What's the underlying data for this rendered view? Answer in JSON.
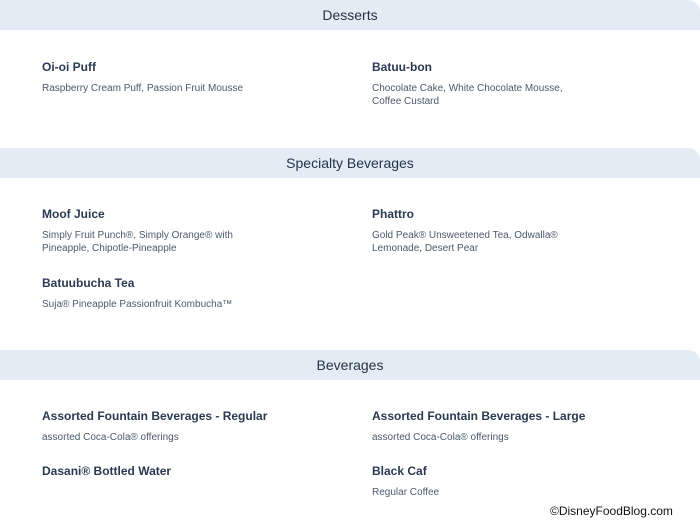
{
  "sections": [
    {
      "title": "Desserts",
      "items": [
        {
          "name": "Oi-oi Puff",
          "desc": "Raspberry Cream Puff, Passion Fruit Mousse"
        },
        {
          "name": "Batuu-bon",
          "desc": "Chocolate Cake, White Chocolate Mousse, Coffee Custard"
        }
      ]
    },
    {
      "title": "Specialty Beverages",
      "items": [
        {
          "name": "Moof Juice",
          "desc": "Simply Fruit Punch®, Simply Orange® with Pineapple, Chipotle-Pineapple"
        },
        {
          "name": "Phattro",
          "desc": "Gold Peak® Unsweetened Tea, Odwalla® Lemonade, Desert Pear"
        },
        {
          "name": "Batuubucha Tea",
          "desc": "Suja® Pineapple Passionfruit Kombucha™"
        }
      ]
    },
    {
      "title": "Beverages",
      "items": [
        {
          "name": "Assorted Fountain Beverages - Regular",
          "desc": "assorted Coca-Cola® offerings"
        },
        {
          "name": "Assorted Fountain Beverages - Large",
          "desc": "assorted Coca-Cola® offerings"
        },
        {
          "name": "Dasani® Bottled Water",
          "desc": ""
        },
        {
          "name": "Black Caf",
          "desc": "Regular Coffee"
        }
      ]
    }
  ],
  "watermark": "©DisneyFoodBlog.com"
}
